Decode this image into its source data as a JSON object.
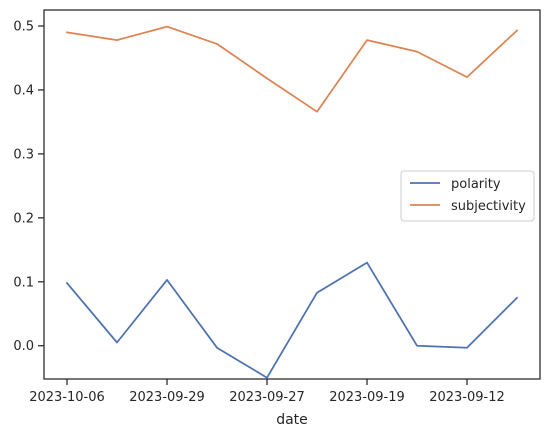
{
  "chart_data": {
    "type": "line",
    "xlabel": "date",
    "ylabel": "",
    "x": [
      "2023-10-06",
      "",
      "2023-09-29",
      "",
      "2023-09-27",
      "",
      "2023-09-19",
      "",
      "2023-09-12",
      ""
    ],
    "xtick_labels": [
      "2023-10-06",
      "2023-09-29",
      "2023-09-27",
      "2023-09-19",
      "2023-09-12"
    ],
    "ylim": [
      -0.052,
      0.525
    ],
    "yticks": [
      0.0,
      0.1,
      0.2,
      0.3,
      0.4,
      0.5
    ],
    "ytick_labels": [
      "0.0",
      "0.1",
      "0.2",
      "0.3",
      "0.4",
      "0.5"
    ],
    "grid": false,
    "legend_position": "center-right",
    "series": [
      {
        "name": "polarity",
        "color": "#4c72b0",
        "values": [
          0.098,
          0.005,
          0.103,
          -0.003,
          -0.05,
          0.083,
          0.13,
          0.0,
          -0.003,
          0.075
        ]
      },
      {
        "name": "subjectivity",
        "color": "#dd8452",
        "values": [
          0.49,
          0.478,
          0.499,
          0.472,
          0.418,
          0.366,
          0.478,
          0.46,
          0.42,
          0.493
        ]
      }
    ]
  }
}
